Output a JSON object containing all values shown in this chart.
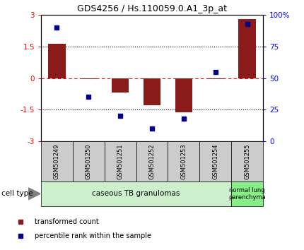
{
  "title": "GDS4256 / Hs.110059.0.A1_3p_at",
  "samples": [
    "GSM501249",
    "GSM501250",
    "GSM501251",
    "GSM501252",
    "GSM501253",
    "GSM501254",
    "GSM501255"
  ],
  "red_bars": [
    1.62,
    -0.05,
    -0.68,
    -1.3,
    -1.62,
    -0.05,
    2.82
  ],
  "blue_dots": [
    90,
    35,
    20,
    10,
    18,
    55,
    93
  ],
  "ylim_left": [
    -3,
    3
  ],
  "ylim_right": [
    0,
    100
  ],
  "yticks_left": [
    -3,
    -1.5,
    0,
    1.5,
    3
  ],
  "ytick_labels_left": [
    "-3",
    "-1.5",
    "0",
    "1.5",
    "3"
  ],
  "yticks_right": [
    0,
    25,
    50,
    75,
    100
  ],
  "ytick_labels_right": [
    "0",
    "25",
    "50",
    "75",
    "100%"
  ],
  "hline_dotted_vals": [
    1.5,
    -1.5
  ],
  "hline_dashed_val": 0,
  "bar_color": "#8B1A1A",
  "dot_color": "#00008B",
  "group1_n": 6,
  "group1_label": "caseous TB granulomas",
  "group2_label": "normal lung\nparenchyma",
  "group1_color": "#ccf0cc",
  "group2_color": "#88ee88",
  "cell_type_label": "cell type",
  "legend_red": "transformed count",
  "legend_blue": "percentile rank within the sample",
  "tick_bg_color": "#cccccc",
  "figsize": [
    4.3,
    3.54
  ],
  "dpi": 100
}
